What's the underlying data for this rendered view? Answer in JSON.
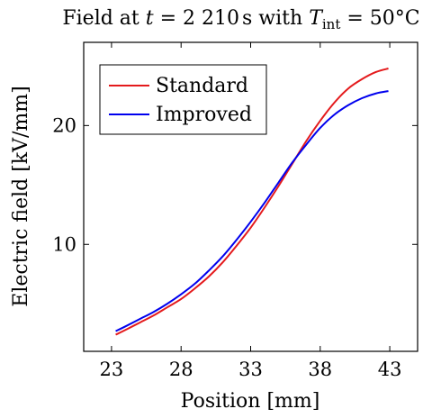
{
  "chart_data": {
    "type": "line",
    "title": "Field at t = 2 210 s with T_int = 50°C",
    "title_parts": {
      "prefix": "Field at ",
      "t_var": "t",
      "t_eq": " = 2 210",
      "t_unit": "s",
      "with": " with ",
      "T_var": "T",
      "T_sub": "int",
      "T_eq": " = 50°C"
    },
    "xlabel": "Position [mm]",
    "ylabel": "Electric field [kV/mm]",
    "xlim": [
      21,
      45
    ],
    "ylim": [
      1,
      27
    ],
    "xticks": [
      23,
      28,
      33,
      38,
      43
    ],
    "yticks": [
      10,
      20
    ],
    "legend_position": "top-left",
    "series": [
      {
        "name": "Standard",
        "color": "#e41a1c",
        "x": [
          23.3,
          24,
          25,
          26,
          27,
          28,
          29,
          30,
          31,
          32,
          33,
          34,
          35,
          36,
          37,
          38,
          39,
          40,
          41,
          42,
          42.9
        ],
        "y": [
          2.4,
          2.8,
          3.4,
          4.0,
          4.7,
          5.4,
          6.3,
          7.3,
          8.5,
          9.9,
          11.4,
          13.1,
          14.9,
          16.8,
          18.7,
          20.4,
          21.9,
          23.1,
          23.9,
          24.5,
          24.8
        ]
      },
      {
        "name": "Improved",
        "color": "#0000ee",
        "x": [
          23.3,
          24,
          25,
          26,
          27,
          28,
          29,
          30,
          31,
          32,
          33,
          34,
          35,
          36,
          37,
          38,
          39,
          40,
          41,
          42,
          42.9
        ],
        "y": [
          2.7,
          3.1,
          3.7,
          4.3,
          5.0,
          5.8,
          6.7,
          7.8,
          9.0,
          10.4,
          11.9,
          13.5,
          15.2,
          16.9,
          18.4,
          19.8,
          20.9,
          21.7,
          22.3,
          22.7,
          22.9
        ]
      }
    ]
  }
}
